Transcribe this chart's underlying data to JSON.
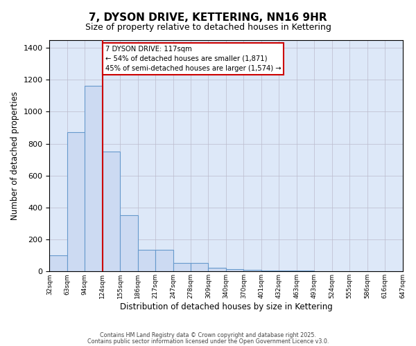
{
  "title": "7, DYSON DRIVE, KETTERING, NN16 9HR",
  "subtitle": "Size of property relative to detached houses in Kettering",
  "xlabel": "Distribution of detached houses by size in Kettering",
  "ylabel": "Number of detached properties",
  "bar_values": [
    100,
    870,
    1160,
    750,
    350,
    135,
    135,
    55,
    55,
    25,
    15,
    10,
    5,
    5,
    5,
    0,
    0,
    0,
    0,
    0
  ],
  "bar_labels": [
    "32sqm",
    "63sqm",
    "94sqm",
    "124sqm",
    "155sqm",
    "186sqm",
    "217sqm",
    "247sqm",
    "278sqm",
    "309sqm",
    "340sqm",
    "370sqm",
    "401sqm",
    "432sqm",
    "463sqm",
    "493sqm",
    "524sqm",
    "555sqm",
    "586sqm",
    "616sqm",
    "647sqm"
  ],
  "bar_color": "#ccdaf2",
  "bar_edge_color": "#6699cc",
  "background_color": "#ffffff",
  "ax_facecolor": "#dde8f8",
  "grid_color": "#bbbbcc",
  "vline_x": 3,
  "vline_color": "#cc0000",
  "ylim": [
    0,
    1450
  ],
  "yticks": [
    0,
    200,
    400,
    600,
    800,
    1000,
    1200,
    1400
  ],
  "annotation_line1": "7 DYSON DRIVE: 117sqm",
  "annotation_line2": "← 54% of detached houses are smaller (1,871)",
  "annotation_line3": "45% of semi-detached houses are larger (1,574) →",
  "footer_line1": "Contains HM Land Registry data © Crown copyright and database right 2025.",
  "footer_line2": "Contains public sector information licensed under the Open Government Licence v3.0."
}
